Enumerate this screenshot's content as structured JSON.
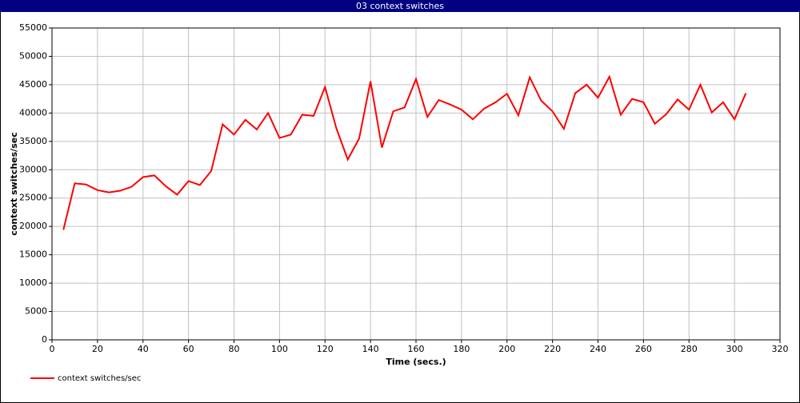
{
  "chart_data": {
    "type": "line",
    "title": "03 context switches",
    "xlabel": "Time (secs.)",
    "ylabel": "context switches/sec",
    "x": [
      5,
      10,
      15,
      20,
      25,
      30,
      35,
      40,
      45,
      50,
      55,
      60,
      65,
      70,
      75,
      80,
      85,
      90,
      95,
      100,
      105,
      110,
      115,
      120,
      125,
      130,
      135,
      140,
      145,
      150,
      155,
      160,
      165,
      170,
      175,
      180,
      185,
      190,
      195,
      200,
      205,
      210,
      215,
      220,
      225,
      230,
      235,
      240,
      245,
      250,
      255,
      260,
      265,
      270,
      275,
      280,
      285,
      290,
      295,
      300,
      305
    ],
    "series": [
      {
        "name": "context switches/sec",
        "color": "#ff0000",
        "values": [
          19400,
          27600,
          27400,
          26400,
          26000,
          26300,
          27000,
          28700,
          29000,
          27100,
          25600,
          28000,
          27300,
          29800,
          38000,
          36200,
          38800,
          37100,
          40000,
          35600,
          36200,
          39700,
          39500,
          44600,
          37300,
          31800,
          35500,
          45600,
          33900,
          40300,
          41000,
          46000,
          39300,
          42300,
          41500,
          40600,
          38900,
          40800,
          41900,
          43400,
          39600,
          46300,
          42200,
          40300,
          37200,
          43500,
          45000,
          42700,
          46400,
          39700,
          42500,
          41900,
          38100,
          39800,
          42400,
          40600,
          45000,
          40100,
          41900,
          38900,
          43500
        ]
      }
    ],
    "xlim": [
      0,
      320
    ],
    "xticks": [
      0,
      20,
      40,
      60,
      80,
      100,
      120,
      140,
      160,
      180,
      200,
      220,
      240,
      260,
      280,
      300,
      320
    ],
    "ylim": [
      0,
      55000
    ],
    "yticks": [
      0,
      5000,
      10000,
      15000,
      20000,
      25000,
      30000,
      35000,
      40000,
      45000,
      50000,
      55000
    ],
    "grid": true
  }
}
